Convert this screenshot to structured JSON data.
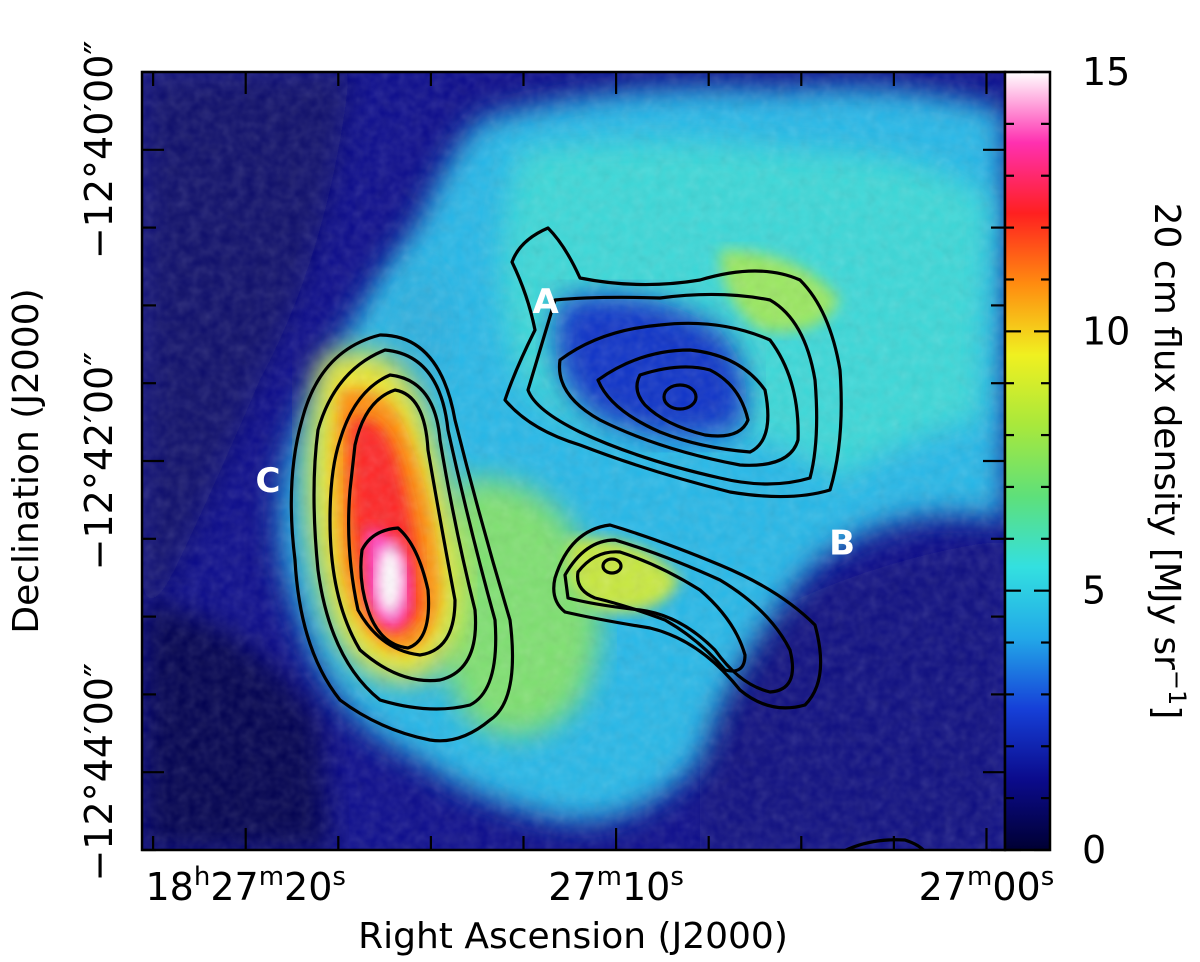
{
  "chart_data": {
    "type": "heatmap",
    "title": "",
    "xlabel": "Right Ascension (J2000)",
    "ylabel": "Declination (J2000)",
    "x_ticks": [
      {
        "pre": "18",
        "sup1": "h",
        "mid": "27",
        "sup2": "m",
        "val": "20",
        "sup3": "s",
        "ra_sec": 20
      },
      {
        "pre": "",
        "sup1": "",
        "mid": "27",
        "sup2": "m",
        "val": "10",
        "sup3": "s",
        "ra_sec": 10
      },
      {
        "pre": "",
        "sup1": "",
        "mid": "27",
        "sup2": "m",
        "val": "00",
        "sup3": "s",
        "ra_sec": 0
      }
    ],
    "y_ticks": [
      {
        "label": "−12°40′00″",
        "dec_arcmin": -40
      },
      {
        "label": "−12°42′00″",
        "dec_arcmin": -42
      },
      {
        "label": "−12°44′00″",
        "dec_arcmin": -44
      }
    ],
    "xlim_ra_sec": [
      22.8,
      -0.5
    ],
    "ylim_dec_arcmin": [
      -44.5,
      -39.5
    ],
    "colorbar": {
      "label": "20 cm flux density [MJy sr⁻¹]",
      "label_main": "20 cm flux density [MJy sr",
      "label_sup": "−1",
      "label_end": "]",
      "min": 0,
      "max": 15,
      "ticks": [
        "0",
        "5",
        "10",
        "15"
      ],
      "colormap": [
        "#000033",
        "#0b0b8c",
        "#1640d8",
        "#22a8e8",
        "#33e0e0",
        "#5ee07a",
        "#a8e83c",
        "#f0f020",
        "#ff8c10",
        "#ff2020",
        "#ff30b0",
        "#ffffff"
      ]
    },
    "annotations": [
      {
        "text": "A",
        "ra_sec": 11.9,
        "dec_arcmin": -41.05
      },
      {
        "text": "B",
        "ra_sec": 3.9,
        "dec_arcmin": -42.6
      },
      {
        "text": "C",
        "ra_sec": 19.4,
        "dec_arcmin": -42.2
      }
    ],
    "contour_sources": [
      "A",
      "B",
      "C"
    ],
    "grid": false,
    "legend": "none"
  }
}
